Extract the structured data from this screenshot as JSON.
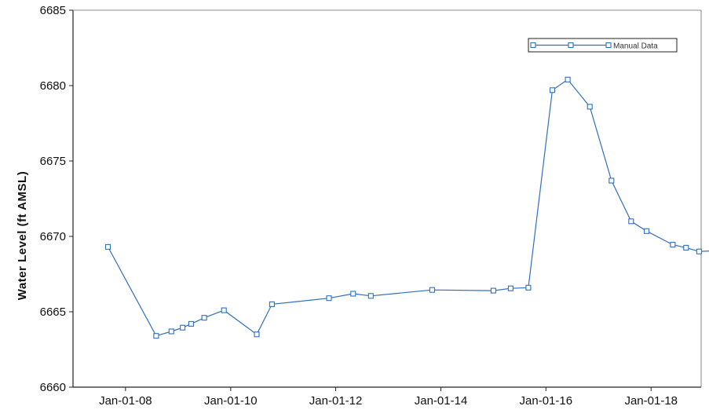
{
  "chart_data": {
    "type": "line",
    "title": "",
    "xlabel": "",
    "ylabel": "Water Level (ft AMSL)",
    "x_type": "date",
    "xlim": [
      "2007-01-01",
      "2018-12-15"
    ],
    "ylim": [
      6660,
      6685
    ],
    "y_ticks": [
      6660,
      6665,
      6670,
      6675,
      6680,
      6685
    ],
    "x_ticks": [
      {
        "date": "2008-01-01",
        "label": "Jan-01-08"
      },
      {
        "date": "2010-01-01",
        "label": "Jan-01-10"
      },
      {
        "date": "2012-01-01",
        "label": "Jan-01-12"
      },
      {
        "date": "2014-01-01",
        "label": "Jan-01-14"
      },
      {
        "date": "2016-01-01",
        "label": "Jan-01-16"
      },
      {
        "date": "2018-01-01",
        "label": "Jan-01-18"
      }
    ],
    "grid": false,
    "legend_position": "top-right",
    "series": [
      {
        "name": "Manual Data",
        "color": "#2e6fc0",
        "marker": "square",
        "points": [
          {
            "x": "2007-09-01",
            "y": 6669.3
          },
          {
            "x": "2008-08-01",
            "y": 6663.4
          },
          {
            "x": "2008-11-15",
            "y": 6663.7
          },
          {
            "x": "2009-02-01",
            "y": 6663.95
          },
          {
            "x": "2009-04-01",
            "y": 6664.2
          },
          {
            "x": "2009-07-01",
            "y": 6664.6
          },
          {
            "x": "2009-11-15",
            "y": 6665.1
          },
          {
            "x": "2010-07-01",
            "y": 6663.5
          },
          {
            "x": "2010-10-15",
            "y": 6665.5
          },
          {
            "x": "2011-11-15",
            "y": 6665.9
          },
          {
            "x": "2012-05-01",
            "y": 6666.2
          },
          {
            "x": "2012-09-01",
            "y": 6666.05
          },
          {
            "x": "2013-11-01",
            "y": 6666.45
          },
          {
            "x": "2015-01-01",
            "y": 6666.4
          },
          {
            "x": "2015-05-01",
            "y": 6666.55
          },
          {
            "x": "2015-09-01",
            "y": 6666.6
          },
          {
            "x": "2016-02-15",
            "y": 6679.7
          },
          {
            "x": "2016-06-01",
            "y": 6680.4
          },
          {
            "x": "2016-11-01",
            "y": 6678.6
          },
          {
            "x": "2017-04-01",
            "y": 6673.7
          },
          {
            "x": "2017-08-15",
            "y": 6671.0
          },
          {
            "x": "2017-12-01",
            "y": 6670.35
          },
          {
            "x": "2018-06-01",
            "y": 6669.45
          },
          {
            "x": "2018-09-01",
            "y": 6669.25
          },
          {
            "x": "2018-12-01",
            "y": 6669.0
          },
          {
            "x": "2019-04-01",
            "y": 6669.05
          }
        ]
      }
    ]
  }
}
